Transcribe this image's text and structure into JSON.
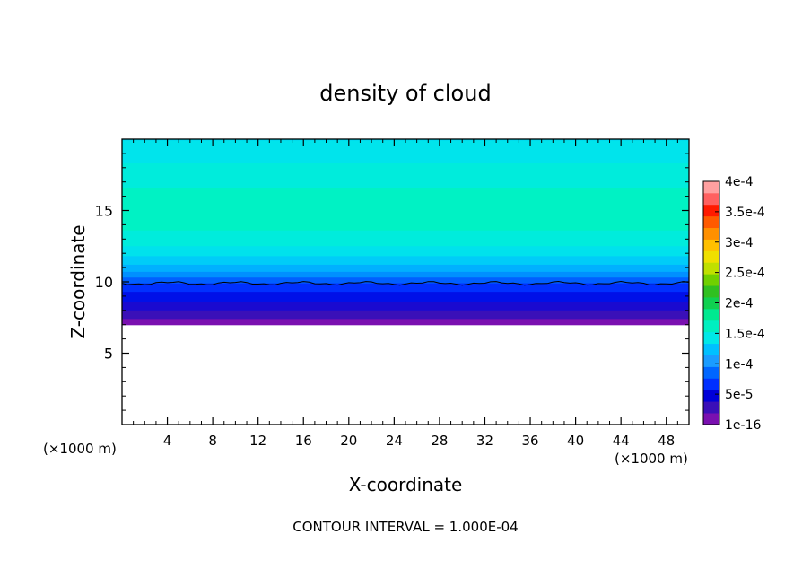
{
  "chart_data": {
    "type": "heatmap",
    "title": "density of cloud",
    "xlabel": "X-coordinate",
    "ylabel": "Z-coordinate",
    "x_units_left": "(×1000 m)",
    "x_units_right": "(×1000 m)",
    "xlim": [
      0,
      50
    ],
    "ylim": [
      0,
      20
    ],
    "x_ticks": [
      4,
      8,
      12,
      16,
      20,
      24,
      28,
      32,
      36,
      40,
      44,
      48
    ],
    "x_tick_labels": [
      "4",
      "8",
      "12",
      "16",
      "20",
      "24",
      "28",
      "32",
      "36",
      "40",
      "44",
      "48"
    ],
    "y_ticks": [
      5,
      10,
      15
    ],
    "y_tick_labels": [
      "5",
      "10",
      "15"
    ],
    "footer": "CONTOUR INTERVAL = 1.000E-04",
    "cloud_base_z": 7.0,
    "contour_line_z": 9.9,
    "colorbar": {
      "levels": [
        "1e-16",
        "5e-5",
        "1e-4",
        "1.5e-4",
        "2e-4",
        "2.5e-4",
        "3e-4",
        "3.5e-4",
        "4e-4"
      ],
      "colors": [
        "#7a10b0",
        "#3a0fb8",
        "#0000d8",
        "#0030ff",
        "#0066ff",
        "#1a9cff",
        "#00c0ff",
        "#00e8e8",
        "#00f0c0",
        "#00e890",
        "#10d050",
        "#30c020",
        "#70d000",
        "#c0e000",
        "#f0e000",
        "#ffc000",
        "#ff9000",
        "#ff5a00",
        "#ff1a00",
        "#ff6060",
        "#ffa0a0"
      ]
    },
    "layers": [
      {
        "z0": 19.9,
        "z1": 20.0,
        "color": "#00d8f0"
      },
      {
        "z0": 18.3,
        "z1": 19.9,
        "color": "#00e4ec"
      },
      {
        "z0": 16.6,
        "z1": 18.3,
        "color": "#00ecdc"
      },
      {
        "z0": 13.6,
        "z1": 16.6,
        "color": "#00f2c4"
      },
      {
        "z0": 12.5,
        "z1": 13.6,
        "color": "#00ecdc"
      },
      {
        "z0": 11.8,
        "z1": 12.5,
        "color": "#00e2ec"
      },
      {
        "z0": 11.2,
        "z1": 11.8,
        "color": "#00ccf8"
      },
      {
        "z0": 10.7,
        "z1": 11.2,
        "color": "#00b0ff"
      },
      {
        "z0": 10.3,
        "z1": 10.7,
        "color": "#0090ff"
      },
      {
        "z0": 9.9,
        "z1": 10.3,
        "color": "#0060ff"
      },
      {
        "z0": 9.3,
        "z1": 9.9,
        "color": "#0030ff"
      },
      {
        "z0": 8.6,
        "z1": 9.3,
        "color": "#0010e8"
      },
      {
        "z0": 8.0,
        "z1": 8.6,
        "color": "#1a0ad0"
      },
      {
        "z0": 7.4,
        "z1": 8.0,
        "color": "#3a10b8"
      },
      {
        "z0": 7.0,
        "z1": 7.4,
        "color": "#7a10b0"
      }
    ]
  }
}
